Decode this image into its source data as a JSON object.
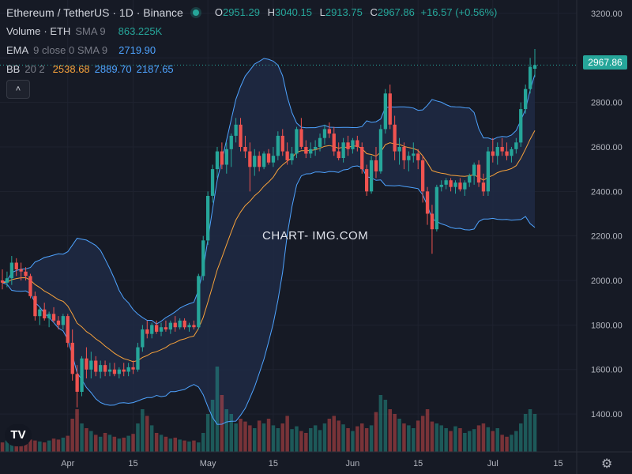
{
  "header": {
    "symbol": "Ethereum / TetherUS · 1D · Binance",
    "open_label": "O",
    "open": "2951.29",
    "high_label": "H",
    "high": "3040.15",
    "low_label": "L",
    "low": "2913.75",
    "close_label": "C",
    "close": "2967.86",
    "change": "+16.57 (+0.56%)"
  },
  "indicators": {
    "volume_name": "Volume",
    "volume_params": "· ETH",
    "volume_sma": "SMA 9",
    "volume_value": "863.225K",
    "ema_name": "EMA",
    "ema_params": "9 close 0 SMA 9",
    "ema_value": "2719.90",
    "bb_name": "BB",
    "bb_params": "20 2",
    "bb_basis": "2538.68",
    "bb_upper": "2889.70",
    "bb_lower": "2187.65"
  },
  "collapse_icon": "chevron-up-icon",
  "last_price_badge": "2967.86",
  "watermark": "CHART- IMG.COM",
  "logo_text": "TV",
  "settings_icon": "gear-icon",
  "colors": {
    "background": "#161a25",
    "up": "#26a69a",
    "down": "#ef5350",
    "ema": "#f7a23b",
    "bands": "#4ea3ff",
    "band_fill": "#1e2a44",
    "grid": "#1f2330"
  },
  "chart_data": {
    "type": "candlestick",
    "title": "Ethereum / TetherUS · 1D · Binance",
    "ylim": [
      1230,
      3260
    ],
    "y_ticks": [
      1400,
      1600,
      1800,
      2000,
      2200,
      2400,
      2600,
      2800,
      3000,
      3200
    ],
    "y_tick_labels": [
      "1400.00",
      "1600.00",
      "1800.00",
      "2000.00",
      "2200.00",
      "2400.00",
      "2600.00",
      "2800.00",
      "3000.00",
      "3200.00"
    ],
    "x_tick_labels": [
      {
        "label": "Apr",
        "index": 14
      },
      {
        "label": "15",
        "index": 28
      },
      {
        "label": "May",
        "index": 44
      },
      {
        "label": "15",
        "index": 58
      },
      {
        "label": "Jun",
        "index": 75
      },
      {
        "label": "15",
        "index": 89
      },
      {
        "label": "Jul",
        "index": 105
      },
      {
        "label": "15",
        "index": 119
      }
    ],
    "grid": true,
    "candles": [
      {
        "o": 2000,
        "h": 2050,
        "l": 1960,
        "c": 1990
      },
      {
        "o": 1990,
        "h": 2040,
        "l": 1970,
        "c": 2010
      },
      {
        "o": 2010,
        "h": 2110,
        "l": 1980,
        "c": 2080
      },
      {
        "o": 2080,
        "h": 2100,
        "l": 2020,
        "c": 2050
      },
      {
        "o": 2050,
        "h": 2080,
        "l": 2000,
        "c": 2040
      },
      {
        "o": 2040,
        "h": 2060,
        "l": 2000,
        "c": 2020
      },
      {
        "o": 2020,
        "h": 2030,
        "l": 1920,
        "c": 1930
      },
      {
        "o": 1930,
        "h": 1950,
        "l": 1820,
        "c": 1840
      },
      {
        "o": 1840,
        "h": 1880,
        "l": 1800,
        "c": 1870
      },
      {
        "o": 1870,
        "h": 1900,
        "l": 1820,
        "c": 1830
      },
      {
        "o": 1830,
        "h": 1860,
        "l": 1790,
        "c": 1850
      },
      {
        "o": 1850,
        "h": 1880,
        "l": 1810,
        "c": 1820
      },
      {
        "o": 1820,
        "h": 1840,
        "l": 1780,
        "c": 1800
      },
      {
        "o": 1800,
        "h": 1850,
        "l": 1780,
        "c": 1840
      },
      {
        "o": 1840,
        "h": 1850,
        "l": 1700,
        "c": 1720
      },
      {
        "o": 1720,
        "h": 1780,
        "l": 1550,
        "c": 1580
      },
      {
        "o": 1580,
        "h": 1620,
        "l": 1430,
        "c": 1500
      },
      {
        "o": 1500,
        "h": 1660,
        "l": 1480,
        "c": 1650
      },
      {
        "o": 1650,
        "h": 1700,
        "l": 1560,
        "c": 1600
      },
      {
        "o": 1600,
        "h": 1680,
        "l": 1560,
        "c": 1640
      },
      {
        "o": 1640,
        "h": 1660,
        "l": 1570,
        "c": 1590
      },
      {
        "o": 1590,
        "h": 1640,
        "l": 1560,
        "c": 1620
      },
      {
        "o": 1620,
        "h": 1640,
        "l": 1570,
        "c": 1590
      },
      {
        "o": 1590,
        "h": 1630,
        "l": 1570,
        "c": 1600
      },
      {
        "o": 1600,
        "h": 1630,
        "l": 1570,
        "c": 1580
      },
      {
        "o": 1580,
        "h": 1610,
        "l": 1560,
        "c": 1600
      },
      {
        "o": 1600,
        "h": 1630,
        "l": 1570,
        "c": 1590
      },
      {
        "o": 1590,
        "h": 1630,
        "l": 1570,
        "c": 1610
      },
      {
        "o": 1610,
        "h": 1640,
        "l": 1580,
        "c": 1600
      },
      {
        "o": 1600,
        "h": 1720,
        "l": 1590,
        "c": 1700
      },
      {
        "o": 1700,
        "h": 1800,
        "l": 1680,
        "c": 1780
      },
      {
        "o": 1780,
        "h": 1820,
        "l": 1740,
        "c": 1760
      },
      {
        "o": 1760,
        "h": 1810,
        "l": 1740,
        "c": 1800
      },
      {
        "o": 1800,
        "h": 1820,
        "l": 1760,
        "c": 1770
      },
      {
        "o": 1770,
        "h": 1810,
        "l": 1750,
        "c": 1790
      },
      {
        "o": 1790,
        "h": 1820,
        "l": 1770,
        "c": 1780
      },
      {
        "o": 1780,
        "h": 1820,
        "l": 1760,
        "c": 1810
      },
      {
        "o": 1810,
        "h": 1840,
        "l": 1770,
        "c": 1790
      },
      {
        "o": 1790,
        "h": 1830,
        "l": 1780,
        "c": 1820
      },
      {
        "o": 1820,
        "h": 1830,
        "l": 1780,
        "c": 1790
      },
      {
        "o": 1790,
        "h": 1810,
        "l": 1770,
        "c": 1800
      },
      {
        "o": 1800,
        "h": 1820,
        "l": 1780,
        "c": 1790
      },
      {
        "o": 1790,
        "h": 2030,
        "l": 1780,
        "c": 2020
      },
      {
        "o": 2020,
        "h": 2200,
        "l": 2000,
        "c": 2180
      },
      {
        "o": 2180,
        "h": 2400,
        "l": 2160,
        "c": 2380
      },
      {
        "o": 2380,
        "h": 2520,
        "l": 2350,
        "c": 2500
      },
      {
        "o": 2500,
        "h": 2600,
        "l": 2460,
        "c": 2580
      },
      {
        "o": 2580,
        "h": 2620,
        "l": 2500,
        "c": 2520
      },
      {
        "o": 2520,
        "h": 2620,
        "l": 2480,
        "c": 2590
      },
      {
        "o": 2590,
        "h": 2660,
        "l": 2510,
        "c": 2650
      },
      {
        "o": 2650,
        "h": 2730,
        "l": 2620,
        "c": 2700
      },
      {
        "o": 2700,
        "h": 2730,
        "l": 2580,
        "c": 2600
      },
      {
        "o": 2600,
        "h": 2650,
        "l": 2550,
        "c": 2580
      },
      {
        "o": 2580,
        "h": 2620,
        "l": 2400,
        "c": 2510
      },
      {
        "o": 2510,
        "h": 2590,
        "l": 2470,
        "c": 2560
      },
      {
        "o": 2560,
        "h": 2580,
        "l": 2490,
        "c": 2510
      },
      {
        "o": 2510,
        "h": 2580,
        "l": 2500,
        "c": 2570
      },
      {
        "o": 2570,
        "h": 2590,
        "l": 2520,
        "c": 2530
      },
      {
        "o": 2530,
        "h": 2600,
        "l": 2510,
        "c": 2560
      },
      {
        "o": 2560,
        "h": 2670,
        "l": 2540,
        "c": 2650
      },
      {
        "o": 2650,
        "h": 2680,
        "l": 2560,
        "c": 2580
      },
      {
        "o": 2580,
        "h": 2620,
        "l": 2520,
        "c": 2540
      },
      {
        "o": 2540,
        "h": 2600,
        "l": 2520,
        "c": 2570
      },
      {
        "o": 2570,
        "h": 2690,
        "l": 2550,
        "c": 2680
      },
      {
        "o": 2680,
        "h": 2730,
        "l": 2590,
        "c": 2600
      },
      {
        "o": 2600,
        "h": 2630,
        "l": 2550,
        "c": 2570
      },
      {
        "o": 2570,
        "h": 2620,
        "l": 2550,
        "c": 2590
      },
      {
        "o": 2590,
        "h": 2630,
        "l": 2560,
        "c": 2600
      },
      {
        "o": 2600,
        "h": 2660,
        "l": 2580,
        "c": 2640
      },
      {
        "o": 2640,
        "h": 2700,
        "l": 2610,
        "c": 2680
      },
      {
        "o": 2680,
        "h": 2710,
        "l": 2640,
        "c": 2660
      },
      {
        "o": 2660,
        "h": 2690,
        "l": 2560,
        "c": 2580
      },
      {
        "o": 2580,
        "h": 2620,
        "l": 2540,
        "c": 2550
      },
      {
        "o": 2550,
        "h": 2640,
        "l": 2530,
        "c": 2620
      },
      {
        "o": 2620,
        "h": 2650,
        "l": 2560,
        "c": 2590
      },
      {
        "o": 2590,
        "h": 2640,
        "l": 2570,
        "c": 2630
      },
      {
        "o": 2630,
        "h": 2650,
        "l": 2580,
        "c": 2600
      },
      {
        "o": 2600,
        "h": 2620,
        "l": 2480,
        "c": 2500
      },
      {
        "o": 2500,
        "h": 2520,
        "l": 2380,
        "c": 2400
      },
      {
        "o": 2400,
        "h": 2560,
        "l": 2390,
        "c": 2540
      },
      {
        "o": 2540,
        "h": 2600,
        "l": 2460,
        "c": 2490
      },
      {
        "o": 2490,
        "h": 2700,
        "l": 2480,
        "c": 2680
      },
      {
        "o": 2680,
        "h": 2860,
        "l": 2660,
        "c": 2840
      },
      {
        "o": 2840,
        "h": 2880,
        "l": 2680,
        "c": 2700
      },
      {
        "o": 2700,
        "h": 2740,
        "l": 2540,
        "c": 2580
      },
      {
        "o": 2580,
        "h": 2640,
        "l": 2520,
        "c": 2600
      },
      {
        "o": 2600,
        "h": 2620,
        "l": 2500,
        "c": 2540
      },
      {
        "o": 2540,
        "h": 2580,
        "l": 2490,
        "c": 2560
      },
      {
        "o": 2560,
        "h": 2620,
        "l": 2530,
        "c": 2570
      },
      {
        "o": 2570,
        "h": 2590,
        "l": 2500,
        "c": 2540
      },
      {
        "o": 2540,
        "h": 2560,
        "l": 2350,
        "c": 2400
      },
      {
        "o": 2400,
        "h": 2420,
        "l": 2250,
        "c": 2300
      },
      {
        "o": 2300,
        "h": 2340,
        "l": 2120,
        "c": 2230
      },
      {
        "o": 2230,
        "h": 2430,
        "l": 2220,
        "c": 2420
      },
      {
        "o": 2420,
        "h": 2450,
        "l": 2400,
        "c": 2430
      },
      {
        "o": 2430,
        "h": 2460,
        "l": 2410,
        "c": 2450
      },
      {
        "o": 2450,
        "h": 2460,
        "l": 2400,
        "c": 2420
      },
      {
        "o": 2420,
        "h": 2450,
        "l": 2390,
        "c": 2440
      },
      {
        "o": 2440,
        "h": 2460,
        "l": 2400,
        "c": 2410
      },
      {
        "o": 2410,
        "h": 2450,
        "l": 2380,
        "c": 2440
      },
      {
        "o": 2440,
        "h": 2480,
        "l": 2420,
        "c": 2470
      },
      {
        "o": 2470,
        "h": 2530,
        "l": 2430,
        "c": 2520
      },
      {
        "o": 2520,
        "h": 2540,
        "l": 2420,
        "c": 2440
      },
      {
        "o": 2440,
        "h": 2480,
        "l": 2380,
        "c": 2400
      },
      {
        "o": 2400,
        "h": 2600,
        "l": 2380,
        "c": 2580
      },
      {
        "o": 2580,
        "h": 2640,
        "l": 2530,
        "c": 2560
      },
      {
        "o": 2560,
        "h": 2620,
        "l": 2520,
        "c": 2600
      },
      {
        "o": 2600,
        "h": 2640,
        "l": 2560,
        "c": 2580
      },
      {
        "o": 2580,
        "h": 2620,
        "l": 2540,
        "c": 2560
      },
      {
        "o": 2560,
        "h": 2600,
        "l": 2530,
        "c": 2590
      },
      {
        "o": 2590,
        "h": 2640,
        "l": 2570,
        "c": 2620
      },
      {
        "o": 2620,
        "h": 2800,
        "l": 2600,
        "c": 2770
      },
      {
        "o": 2770,
        "h": 2880,
        "l": 2750,
        "c": 2860
      },
      {
        "o": 2860,
        "h": 3000,
        "l": 2840,
        "c": 2960
      },
      {
        "o": 2951.29,
        "h": 3040.15,
        "l": 2913.75,
        "c": 2967.86
      }
    ],
    "volume_heights_rel": [
      0.1,
      0.12,
      0.14,
      0.12,
      0.1,
      0.11,
      0.13,
      0.12,
      0.11,
      0.1,
      0.12,
      0.14,
      0.13,
      0.15,
      0.17,
      0.35,
      0.45,
      0.3,
      0.25,
      0.22,
      0.18,
      0.16,
      0.2,
      0.18,
      0.16,
      0.14,
      0.15,
      0.17,
      0.19,
      0.3,
      0.45,
      0.38,
      0.28,
      0.2,
      0.18,
      0.16,
      0.14,
      0.15,
      0.13,
      0.12,
      0.11,
      0.12,
      0.1,
      0.2,
      0.4,
      0.55,
      0.9,
      0.6,
      0.45,
      0.4,
      0.3,
      0.35,
      0.32,
      0.28,
      0.25,
      0.33,
      0.3,
      0.35,
      0.28,
      0.25,
      0.3,
      0.38,
      0.24,
      0.27,
      0.22,
      0.2,
      0.25,
      0.28,
      0.23,
      0.3,
      0.35,
      0.38,
      0.33,
      0.29,
      0.25,
      0.22,
      0.27,
      0.3,
      0.25,
      0.28,
      0.42,
      0.6,
      0.55,
      0.45,
      0.4,
      0.35,
      0.3,
      0.28,
      0.25,
      0.33,
      0.38,
      0.45,
      0.32,
      0.3,
      0.28,
      0.25,
      0.22,
      0.27,
      0.25,
      0.2,
      0.22,
      0.24,
      0.28,
      0.3,
      0.26,
      0.22,
      0.25,
      0.18,
      0.16,
      0.18,
      0.22,
      0.3,
      0.4,
      0.45,
      0.4
    ]
  }
}
